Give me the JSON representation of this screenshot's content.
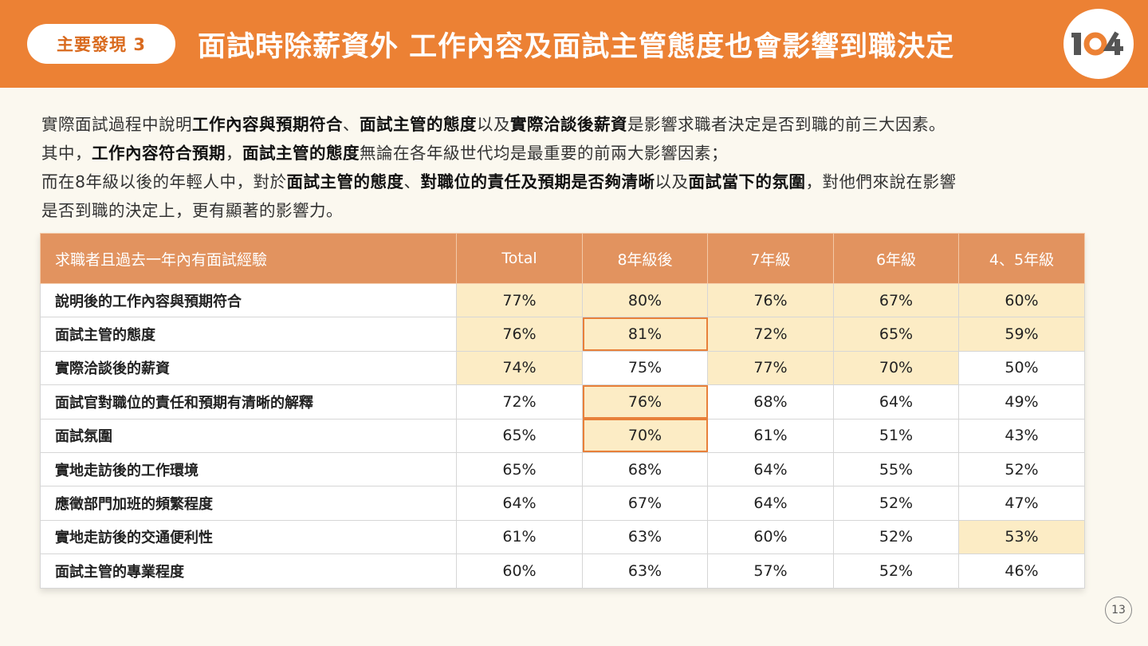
{
  "header": {
    "badge": "主要發現 3",
    "title": "面試時除薪資外  工作內容及面試主管態度也會影響到職決定",
    "logo_text": "104",
    "accent": "#ec8134"
  },
  "intro": {
    "l1_a": "實際面試過程中說明",
    "l1_b": "工作內容與預期符合",
    "l1_c": "、",
    "l1_d": "面試主管的態度",
    "l1_e": "以及",
    "l1_f": "實際洽談後薪資",
    "l1_g": "是影響求職者決定是否到職的前三大因素。",
    "l2_a": "其中，",
    "l2_b": "工作內容符合預期",
    "l2_c": "，",
    "l2_d": "面試主管的態度",
    "l2_e": "無論在各年級世代均是最重要的前兩大影響因素；",
    "l3_a": "而在8年級以後的年輕人中，對於",
    "l3_b": "面試主管的態度",
    "l3_c": "、",
    "l3_d": "對職位的責任及預期是否夠清晰",
    "l3_e": "以及",
    "l3_f": "面試當下的氛圍",
    "l3_g": "，對他們來說在影響",
    "l4": "是否到職的決定上，更有顯著的影響力。"
  },
  "table": {
    "headers": [
      "求職者且過去一年內有面試經驗",
      "Total",
      "8年級後",
      "7年級",
      "6年級",
      "4、5年級"
    ],
    "rows": [
      {
        "label": "說明後的工作內容與預期符合",
        "values": [
          "77%",
          "80%",
          "76%",
          "67%",
          "60%"
        ]
      },
      {
        "label": "面試主管的態度",
        "values": [
          "76%",
          "81%",
          "72%",
          "65%",
          "59%"
        ]
      },
      {
        "label": "實際洽談後的薪資",
        "values": [
          "74%",
          "75%",
          "77%",
          "70%",
          "50%"
        ]
      },
      {
        "label": "面試官對職位的責任和預期有清晰的解釋",
        "values": [
          "72%",
          "76%",
          "68%",
          "64%",
          "49%"
        ]
      },
      {
        "label": "面試氛圍",
        "values": [
          "65%",
          "70%",
          "61%",
          "51%",
          "43%"
        ]
      },
      {
        "label": "實地走訪後的工作環境",
        "values": [
          "65%",
          "68%",
          "64%",
          "55%",
          "52%"
        ]
      },
      {
        "label": "應徵部門加班的頻繁程度",
        "values": [
          "64%",
          "67%",
          "64%",
          "52%",
          "47%"
        ]
      },
      {
        "label": "實地走訪後的交通便利性",
        "values": [
          "61%",
          "63%",
          "60%",
          "52%",
          "53%"
        ]
      },
      {
        "label": "面試主管的專業程度",
        "values": [
          "60%",
          "63%",
          "57%",
          "52%",
          "46%"
        ]
      }
    ]
  },
  "page_number": "13"
}
